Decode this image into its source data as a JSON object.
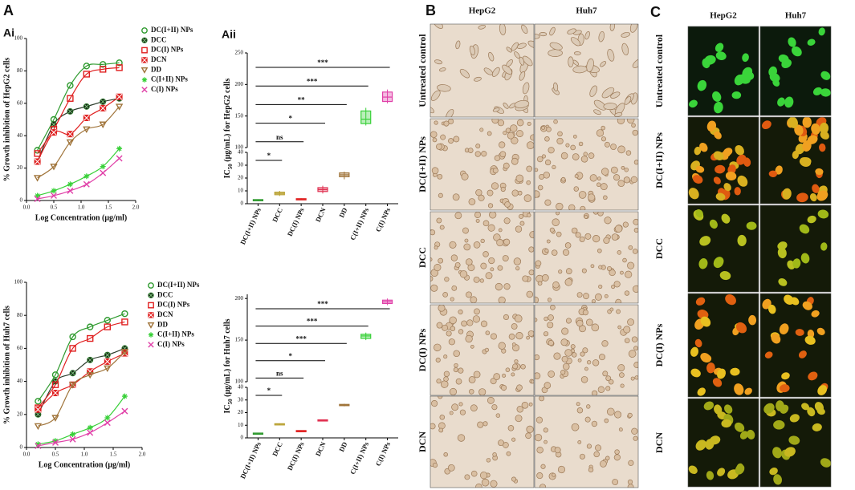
{
  "labels": {
    "A": "A",
    "Ai": "Ai",
    "Aii": "Aii",
    "B": "B",
    "C": "C"
  },
  "chart_data": [
    {
      "type": "scatter",
      "ylabel": "% Growth inhibition of HepG2 cells",
      "xlabel": "Log Concentration (μg/ml)",
      "x": [
        0.2,
        0.5,
        0.8,
        1.1,
        1.4,
        1.7
      ],
      "xlim": [
        0,
        2
      ],
      "xticks": [
        {
          "value": 0,
          "label": "0.0"
        },
        0.5,
        {
          "value": 1,
          "label": "1.0"
        },
        1.5,
        {
          "value": 2,
          "label": "2.0"
        }
      ],
      "ylim": [
        0,
        100
      ],
      "yticks": [
        0,
        20,
        40,
        60,
        80,
        100
      ],
      "legend": "outside right",
      "series": [
        {
          "name": "DC(I+II) NPs",
          "color": "#2e9a2e",
          "marker": "o",
          "values": [
            31,
            50,
            71,
            83,
            84,
            85
          ]
        },
        {
          "name": "DCC",
          "color": "#2d3d2d",
          "marker": "ox",
          "values": [
            24,
            47,
            55,
            58,
            61,
            63
          ]
        },
        {
          "name": "DC(I) NPs",
          "color": "#e02020",
          "marker": "s",
          "values": [
            29,
            44,
            63,
            78,
            81,
            82
          ]
        },
        {
          "name": "DCN",
          "color": "#e02020",
          "marker": "sx",
          "values": [
            24,
            42,
            41,
            51,
            57,
            64
          ]
        },
        {
          "name": "DD",
          "color": "#a0743a",
          "marker": "v",
          "values": [
            14,
            21,
            36,
            44,
            47,
            58
          ]
        },
        {
          "name": "C(I+II) NPs",
          "color": "#38d038",
          "marker": "star",
          "values": [
            3,
            6,
            10,
            15,
            21,
            32
          ]
        },
        {
          "name": "C(I) NPs",
          "color": "#e040a8",
          "marker": "x",
          "values": [
            1,
            3,
            6,
            10,
            17,
            26
          ]
        }
      ]
    },
    {
      "type": "scatter",
      "ylabel": "% Growth inhibition of Huh7 cells",
      "xlabel": "Log Concentration (μg/ml)",
      "x": [
        0.2,
        0.5,
        0.8,
        1.1,
        1.4,
        1.7
      ],
      "xlim": [
        0,
        2
      ],
      "xticks": [
        {
          "value": 0,
          "label": "0.0"
        },
        0.5,
        {
          "value": 1,
          "label": "1.0"
        },
        1.5,
        {
          "value": 2,
          "label": "2.0"
        }
      ],
      "ylim": [
        0,
        100
      ],
      "yticks": [
        0,
        20,
        40,
        60,
        80,
        100
      ],
      "legend": "outside right",
      "series": [
        {
          "name": "DC(I+II) NPs",
          "color": "#2e9a2e",
          "marker": "o",
          "values": [
            28,
            44,
            67,
            73,
            77,
            81
          ]
        },
        {
          "name": "DCC",
          "color": "#2d3d2d",
          "marker": "ox",
          "values": [
            20,
            40,
            45,
            53,
            56,
            60
          ]
        },
        {
          "name": "DC(I) NPs",
          "color": "#e02020",
          "marker": "s",
          "values": [
            24,
            38,
            60,
            66,
            73,
            76
          ]
        },
        {
          "name": "DCN",
          "color": "#e02020",
          "marker": "sx",
          "values": [
            23,
            33,
            38,
            46,
            52,
            57
          ]
        },
        {
          "name": "DD",
          "color": "#a0743a",
          "marker": "v",
          "values": [
            13,
            18,
            38,
            44,
            48,
            58
          ]
        },
        {
          "name": "C(I+II) NPs",
          "color": "#38d038",
          "marker": "star",
          "values": [
            2,
            4,
            8,
            12,
            18,
            31
          ]
        },
        {
          "name": "C(I) NPs",
          "color": "#e040a8",
          "marker": "x",
          "values": [
            1,
            3,
            5,
            9,
            15,
            22
          ]
        }
      ]
    },
    {
      "type": "box",
      "ylabel": {
        "main": "IC",
        "sub": "50",
        "rest": " (μg/mL) for HepG2 cells"
      },
      "categories": [
        "DC(I+II) NPs",
        "DCC",
        "DC(I) NPs",
        "DCN",
        "DD",
        "C(I+II) NPs",
        "C(I) NPs"
      ],
      "colors": [
        "#2e9a2e",
        "#b8a030",
        "#e02020",
        "#e03050",
        "#a0743a",
        "#38d038",
        "#e040a8"
      ],
      "whislo": [
        2.5,
        6,
        3,
        8,
        19,
        135,
        170
      ],
      "q1": [
        2.7,
        7,
        3.3,
        9.5,
        21,
        138,
        173
      ],
      "med": [
        3,
        8,
        3.6,
        11,
        22.5,
        145,
        180
      ],
      "q3": [
        3.2,
        9,
        3.9,
        12.5,
        24,
        158,
        188
      ],
      "whishi": [
        3.4,
        10,
        4.2,
        14,
        25,
        163,
        192
      ],
      "ylim": [
        0,
        40
      ],
      "yticks": [
        0,
        10,
        20,
        30,
        40
      ],
      "ylim_upper": [
        100,
        250
      ],
      "yticks_upper": [
        100,
        150,
        200,
        250
      ],
      "comparisons": [
        {
          "label": "*",
          "from": "DC(I+II) NPs",
          "to": "DCC"
        },
        {
          "label": "ns",
          "from": "DC(I+II) NPs",
          "to": "DC(I) NPs"
        },
        {
          "label": "*",
          "from": "DC(I+II) NPs",
          "to": "DCN"
        },
        {
          "label": "**",
          "from": "DC(I+II) NPs",
          "to": "DD"
        },
        {
          "label": "***",
          "from": "DC(I+II) NPs",
          "to": "C(I+II) NPs"
        },
        {
          "label": "***",
          "from": "DC(I+II) NPs",
          "to": "C(I) NPs"
        }
      ]
    },
    {
      "type": "box",
      "ylabel": {
        "main": "IC",
        "sub": "50",
        "rest": " (μg/mL) for Huh7 cells"
      },
      "categories": [
        "DC(I+II) NPs",
        "DCC",
        "DC(I) NPs",
        "DCN",
        "DD",
        "C(I+II) NPs",
        "C(I) NPs"
      ],
      "colors": [
        "#2e9a2e",
        "#b8a030",
        "#e02020",
        "#e03050",
        "#a0743a",
        "#38d038",
        "#e040a8"
      ],
      "whislo": [
        3.2,
        10.5,
        5,
        13.5,
        25,
        150,
        192
      ],
      "q1": [
        3.4,
        10.8,
        5.2,
        13.7,
        25.5,
        152,
        194
      ],
      "med": [
        3.6,
        11,
        5.5,
        14,
        26,
        155,
        196
      ],
      "q3": [
        3.8,
        11.2,
        5.8,
        14.3,
        26.5,
        157,
        198
      ],
      "whishi": [
        4,
        11.5,
        6,
        14.5,
        27,
        159,
        200
      ],
      "ylim": [
        0,
        40
      ],
      "yticks": [
        0,
        10,
        20,
        30,
        40
      ],
      "ylim_upper": [
        100,
        205
      ],
      "yticks_upper": [
        100,
        150,
        200
      ],
      "comparisons": [
        {
          "label": "*",
          "from": "DC(I+II) NPs",
          "to": "DCC"
        },
        {
          "label": "ns",
          "from": "DC(I+II) NPs",
          "to": "DC(I) NPs"
        },
        {
          "label": "*",
          "from": "DC(I+II) NPs",
          "to": "DCN"
        },
        {
          "label": "***",
          "from": "DC(I+II) NPs",
          "to": "DD"
        },
        {
          "label": "***",
          "from": "DC(I+II) NPs",
          "to": "C(I+II) NPs"
        },
        {
          "label": "***",
          "from": "DC(I+II) NPs",
          "to": "C(I) NPs"
        }
      ]
    }
  ],
  "micrographs": {
    "columns": [
      "HepG2",
      "Huh7"
    ],
    "rows": [
      "Untreated control",
      "DC(I+II) NPs",
      "DCC",
      "DC(I) NPs",
      "DCN"
    ]
  },
  "fluorescence": {
    "columns": [
      "HepG2",
      "Huh7"
    ],
    "rows": [
      "Untreated control",
      "DC(I+II) NPs",
      "DCC",
      "DC(I) NPs",
      "DCN"
    ]
  }
}
